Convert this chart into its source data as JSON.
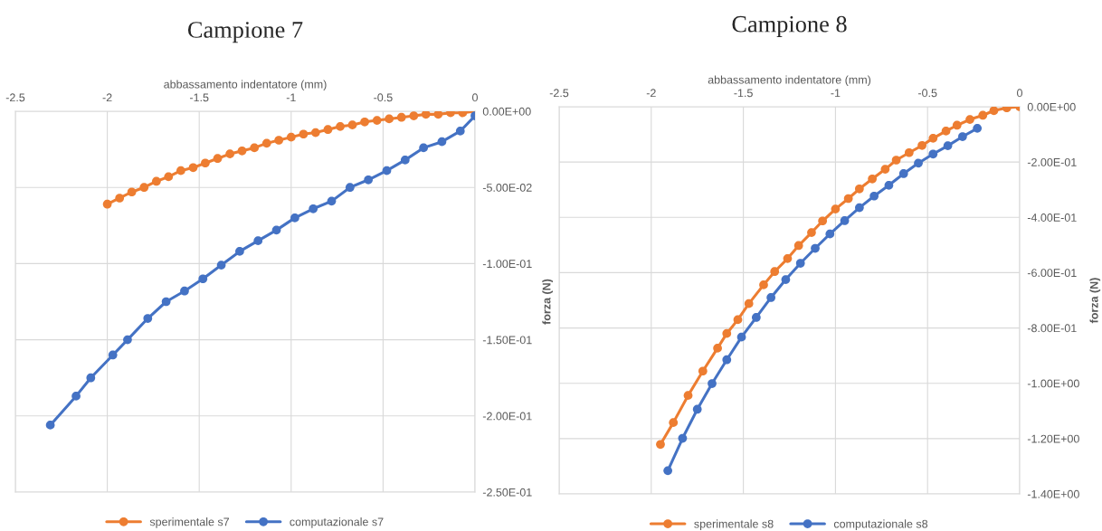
{
  "chart_data": [
    {
      "type": "line",
      "title": "Campione 7",
      "xlabel": "abbassamento indentatore (mm)",
      "ylabel": "forza (N)",
      "xlim": [
        -2.5,
        0
      ],
      "xticks": [
        -2.5,
        -2,
        -1.5,
        -1,
        -0.5,
        0
      ],
      "ylim": [
        -0.25,
        0
      ],
      "yticks": [
        {
          "value": 0,
          "label": "0.00E+00"
        },
        {
          "value": -0.05,
          "label": "-5.00E-02"
        },
        {
          "value": -0.1,
          "label": "-1.00E-01"
        },
        {
          "value": -0.15,
          "label": "-1.50E-01"
        },
        {
          "value": -0.2,
          "label": "-2.00E-01"
        },
        {
          "value": -0.25,
          "label": "-2.50E-01"
        }
      ],
      "grid": true,
      "legend": "bottom",
      "marker": "circle",
      "series": [
        {
          "name": "sperimentale s7",
          "color": "#ed7d31",
          "x": [
            -2.0,
            -1.933,
            -1.867,
            -1.8,
            -1.733,
            -1.667,
            -1.6,
            -1.533,
            -1.467,
            -1.4,
            -1.333,
            -1.267,
            -1.2,
            -1.133,
            -1.067,
            -1.0,
            -0.933,
            -0.867,
            -0.8,
            -0.733,
            -0.667,
            -0.6,
            -0.533,
            -0.467,
            -0.4,
            -0.333,
            -0.267,
            -0.2,
            -0.133,
            -0.067,
            0.0
          ],
          "values": [
            -0.061,
            -0.057,
            -0.053,
            -0.05,
            -0.046,
            -0.043,
            -0.039,
            -0.037,
            -0.034,
            -0.031,
            -0.028,
            -0.026,
            -0.024,
            -0.021,
            -0.019,
            -0.017,
            -0.015,
            -0.014,
            -0.012,
            -0.01,
            -0.009,
            -0.007,
            -0.006,
            -0.005,
            -0.004,
            -0.003,
            -0.002,
            -0.002,
            -0.001,
            -0.001,
            0.0
          ]
        },
        {
          "name": "computazionale s7",
          "color": "#4472c4",
          "x": [
            0.0,
            -0.08,
            -0.18,
            -0.28,
            -0.38,
            -0.48,
            -0.58,
            -0.68,
            -0.78,
            -0.88,
            -0.98,
            -1.08,
            -1.18,
            -1.28,
            -1.38,
            -1.48,
            -1.58,
            -1.68,
            -1.78,
            -1.89,
            -1.97,
            -2.09,
            -2.17,
            -2.31
          ],
          "values": [
            -0.003,
            -0.013,
            -0.02,
            -0.024,
            -0.032,
            -0.039,
            -0.045,
            -0.05,
            -0.059,
            -0.064,
            -0.07,
            -0.078,
            -0.085,
            -0.092,
            -0.101,
            -0.11,
            -0.118,
            -0.125,
            -0.136,
            -0.15,
            -0.16,
            -0.175,
            -0.187,
            -0.206
          ]
        }
      ]
    },
    {
      "type": "line",
      "title": "Campione 8",
      "xlabel": "abbassamento indentatore (mm)",
      "ylabel": "forza (N)",
      "xlim": [
        -2.5,
        0
      ],
      "xticks": [
        -2.5,
        -2,
        -1.5,
        -1,
        -0.5,
        0
      ],
      "ylim": [
        -1.4,
        0
      ],
      "yticks": [
        {
          "value": 0,
          "label": "0.00E+00"
        },
        {
          "value": -0.2,
          "label": "-2.00E-01"
        },
        {
          "value": -0.4,
          "label": "-4.00E-01"
        },
        {
          "value": -0.6,
          "label": "-6.00E-01"
        },
        {
          "value": -0.8,
          "label": "-8.00E-01"
        },
        {
          "value": -1.0,
          "label": "-1.00E+00"
        },
        {
          "value": -1.2,
          "label": "-1.20E+00"
        },
        {
          "value": -1.4,
          "label": "-1.40E+00"
        }
      ],
      "grid": true,
      "legend": "bottom",
      "marker": "circle",
      "series": [
        {
          "name": "sperimentale s8",
          "color": "#ed7d31",
          "x": [
            0.0,
            -0.07,
            -0.14,
            -0.2,
            -0.27,
            -0.34,
            -0.4,
            -0.47,
            -0.53,
            -0.6,
            -0.67,
            -0.73,
            -0.8,
            -0.87,
            -0.93,
            -1.0,
            -1.07,
            -1.13,
            -1.2,
            -1.26,
            -1.33,
            -1.39,
            -1.47,
            -1.53,
            -1.59,
            -1.64,
            -1.72,
            -1.8,
            -1.88,
            -1.95
          ],
          "values": [
            0.0,
            -0.004,
            -0.014,
            -0.031,
            -0.046,
            -0.067,
            -0.088,
            -0.114,
            -0.14,
            -0.166,
            -0.193,
            -0.226,
            -0.261,
            -0.297,
            -0.332,
            -0.37,
            -0.413,
            -0.455,
            -0.502,
            -0.549,
            -0.596,
            -0.644,
            -0.712,
            -0.77,
            -0.82,
            -0.873,
            -0.956,
            -1.044,
            -1.142,
            -1.221
          ]
        },
        {
          "name": "computazionale s8",
          "color": "#4472c4",
          "x": [
            -0.23,
            -0.31,
            -0.39,
            -0.47,
            -0.55,
            -0.63,
            -0.71,
            -0.79,
            -0.87,
            -0.95,
            -1.03,
            -1.11,
            -1.19,
            -1.27,
            -1.35,
            -1.43,
            -1.51,
            -1.59,
            -1.67,
            -1.75,
            -1.83,
            -1.91
          ],
          "values": [
            -0.078,
            -0.108,
            -0.141,
            -0.171,
            -0.204,
            -0.242,
            -0.284,
            -0.323,
            -0.365,
            -0.412,
            -0.46,
            -0.512,
            -0.566,
            -0.625,
            -0.69,
            -0.762,
            -0.833,
            -0.915,
            -1.001,
            -1.094,
            -1.199,
            -1.316
          ]
        }
      ]
    }
  ]
}
